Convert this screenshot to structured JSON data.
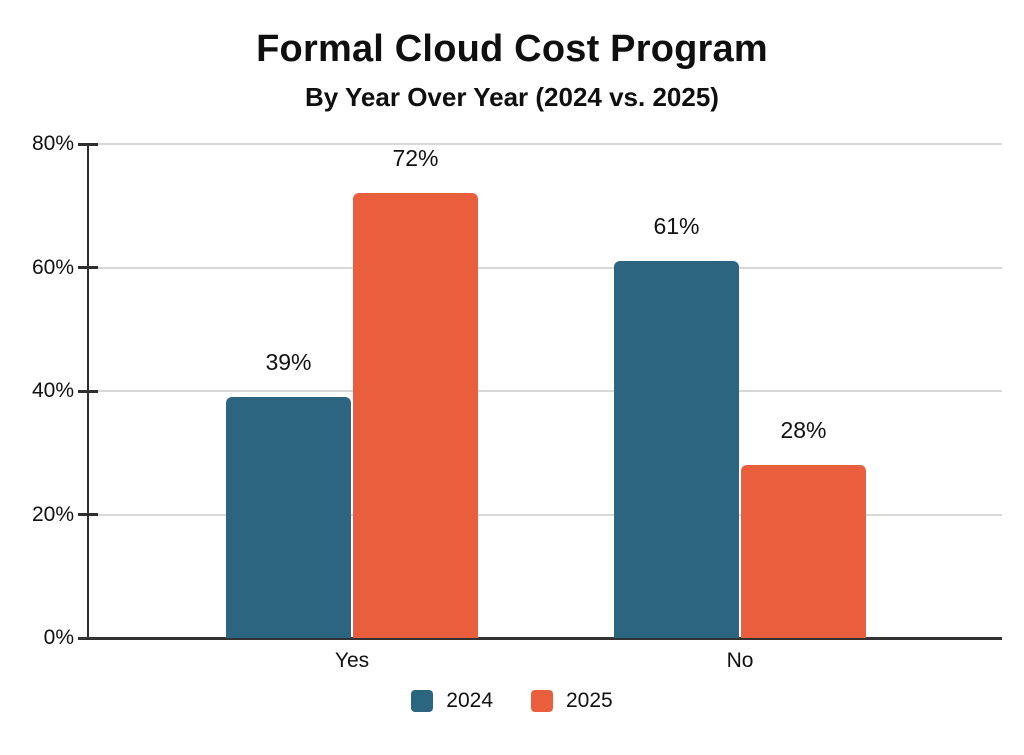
{
  "chart_data": {
    "type": "bar",
    "title": "Formal Cloud Cost Program",
    "subtitle": "By Year Over Year (2024 vs. 2025)",
    "categories": [
      "Yes",
      "No"
    ],
    "series": [
      {
        "name": "2024",
        "color": "#2B6580",
        "values": [
          39,
          61
        ]
      },
      {
        "name": "2025",
        "color": "#E95F3E",
        "values": [
          72,
          28
        ]
      }
    ],
    "value_labels": [
      [
        "39%",
        "61%"
      ],
      [
        "72%",
        "28%"
      ]
    ],
    "xlabel": "",
    "ylabel": "",
    "ylim": [
      0,
      80
    ],
    "yticks": [
      0,
      20,
      40,
      60,
      80
    ],
    "ytick_labels": [
      "0%",
      "20%",
      "40%",
      "60%",
      "80%"
    ],
    "grid": true,
    "legend_position": "bottom",
    "colors": {
      "grid": "#D8D8D8",
      "axis": "#2E2E2E",
      "text": "#111111",
      "background": "#FFFFFF"
    }
  }
}
